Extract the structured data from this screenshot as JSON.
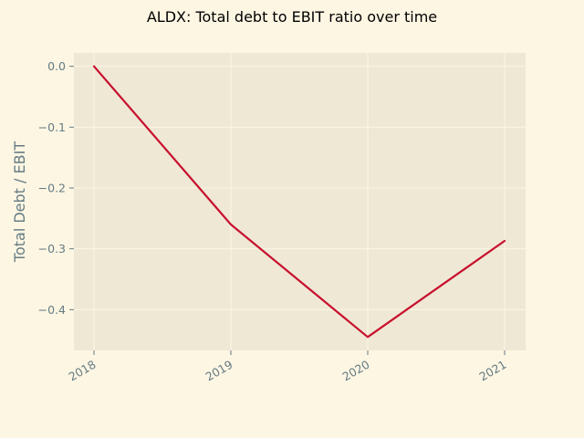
{
  "chart_data": {
    "type": "line",
    "title": "ALDX: Total debt to EBIT ratio over time",
    "xlabel": "",
    "ylabel": "Total Debt / EBIT",
    "x": [
      "2018",
      "2019",
      "2020",
      "2021"
    ],
    "series": [
      {
        "values": [
          0.0,
          -0.26,
          -0.445,
          -0.287
        ],
        "color": "#c8102e"
      }
    ],
    "yticks": [
      0.0,
      -0.1,
      -0.2,
      -0.3,
      -0.4
    ],
    "ytick_labels": [
      "0.0",
      "−0.1",
      "−0.2",
      "−0.3",
      "−0.4"
    ],
    "ylim": [
      -0.467,
      0.022
    ],
    "grid": true,
    "background": "#fdf6e3",
    "plot_background": "#eee8d5"
  }
}
